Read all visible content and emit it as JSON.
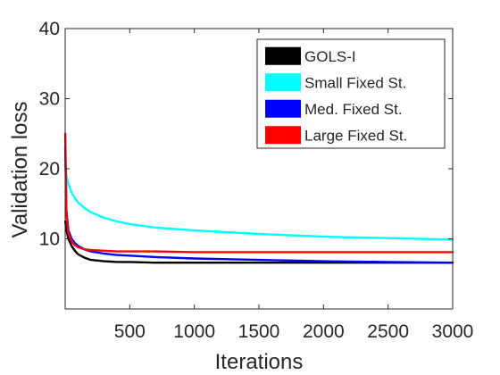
{
  "chart_data": {
    "type": "line",
    "title": "",
    "xlabel": "Iterations",
    "ylabel": "Validation loss",
    "xlim": [
      0,
      3000
    ],
    "ylim": [
      0,
      40
    ],
    "xticks": [
      500,
      1000,
      1500,
      2000,
      2500,
      3000
    ],
    "yticks": [
      10,
      20,
      30,
      40
    ],
    "grid": false,
    "legend_position": "top-right",
    "series": [
      {
        "name": "GOLS-I",
        "color": "#000000",
        "x": [
          1,
          10,
          25,
          50,
          75,
          100,
          150,
          200,
          300,
          400,
          500,
          700,
          1000,
          1500,
          2000,
          2500,
          3000
        ],
        "y": [
          12.5,
          11.2,
          10.0,
          9.0,
          8.3,
          7.8,
          7.3,
          7.0,
          6.8,
          6.7,
          6.7,
          6.6,
          6.6,
          6.6,
          6.6,
          6.6,
          6.6
        ]
      },
      {
        "name": "Small Fixed St.",
        "color": "#00FFFF",
        "x": [
          1,
          10,
          25,
          50,
          75,
          100,
          150,
          200,
          300,
          400,
          500,
          700,
          1000,
          1500,
          2000,
          2500,
          3000
        ],
        "y": [
          20.5,
          19.0,
          17.8,
          16.6,
          15.8,
          15.2,
          14.4,
          13.8,
          13.0,
          12.5,
          12.1,
          11.6,
          11.2,
          10.7,
          10.3,
          10.1,
          9.9
        ]
      },
      {
        "name": "Med. Fixed St.",
        "color": "#0000FF",
        "x": [
          1,
          10,
          25,
          50,
          75,
          100,
          150,
          200,
          300,
          400,
          500,
          700,
          1000,
          1500,
          2000,
          2500,
          3000
        ],
        "y": [
          23.0,
          14.0,
          11.2,
          10.0,
          9.4,
          9.0,
          8.5,
          8.2,
          7.9,
          7.7,
          7.6,
          7.4,
          7.2,
          7.0,
          6.8,
          6.7,
          6.6
        ]
      },
      {
        "name": "Large Fixed St.",
        "color": "#FF0000",
        "x": [
          1,
          10,
          25,
          50,
          75,
          100,
          150,
          200,
          300,
          400,
          500,
          700,
          1000,
          1500,
          2000,
          2500,
          3000
        ],
        "y": [
          25.0,
          13.5,
          10.8,
          9.6,
          9.1,
          8.8,
          8.5,
          8.4,
          8.3,
          8.2,
          8.2,
          8.2,
          8.1,
          8.1,
          8.1,
          8.1,
          8.1
        ]
      }
    ]
  }
}
